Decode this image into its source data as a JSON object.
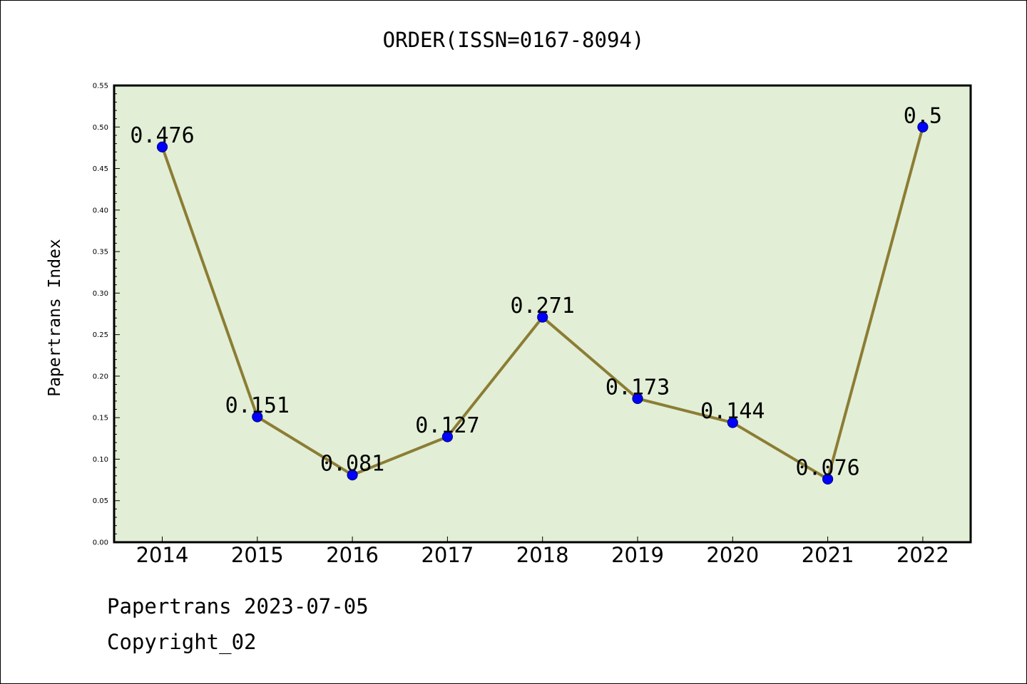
{
  "chart_data": {
    "type": "line",
    "title": "ORDER(ISSN=0167-8094)",
    "xlabel": "",
    "ylabel": "Papertrans Index",
    "categories": [
      "2014",
      "2015",
      "2016",
      "2017",
      "2018",
      "2019",
      "2020",
      "2021",
      "2022"
    ],
    "values": [
      0.476,
      0.151,
      0.081,
      0.127,
      0.271,
      0.173,
      0.144,
      0.076,
      0.5
    ],
    "data_labels": [
      "0.476",
      "0.151",
      "0.081",
      "0.127",
      "0.271",
      "0.173",
      "0.144",
      "0.076",
      "0.5"
    ],
    "ylim": [
      0,
      0.55
    ],
    "yticks": [
      "0.00",
      "0.05",
      "0.10",
      "0.15",
      "0.20",
      "0.25",
      "0.30",
      "0.35",
      "0.40",
      "0.45",
      "0.50",
      "0.55"
    ],
    "grid": false,
    "legend": "none",
    "colors": {
      "plot_background": "#e2efd6",
      "line": "#8c7d35",
      "marker": "#0000ff",
      "marker_edge": "#00008b"
    }
  },
  "footer": {
    "date_line": "Papertrans 2023-07-05",
    "copyright_line": "Copyright_02"
  }
}
